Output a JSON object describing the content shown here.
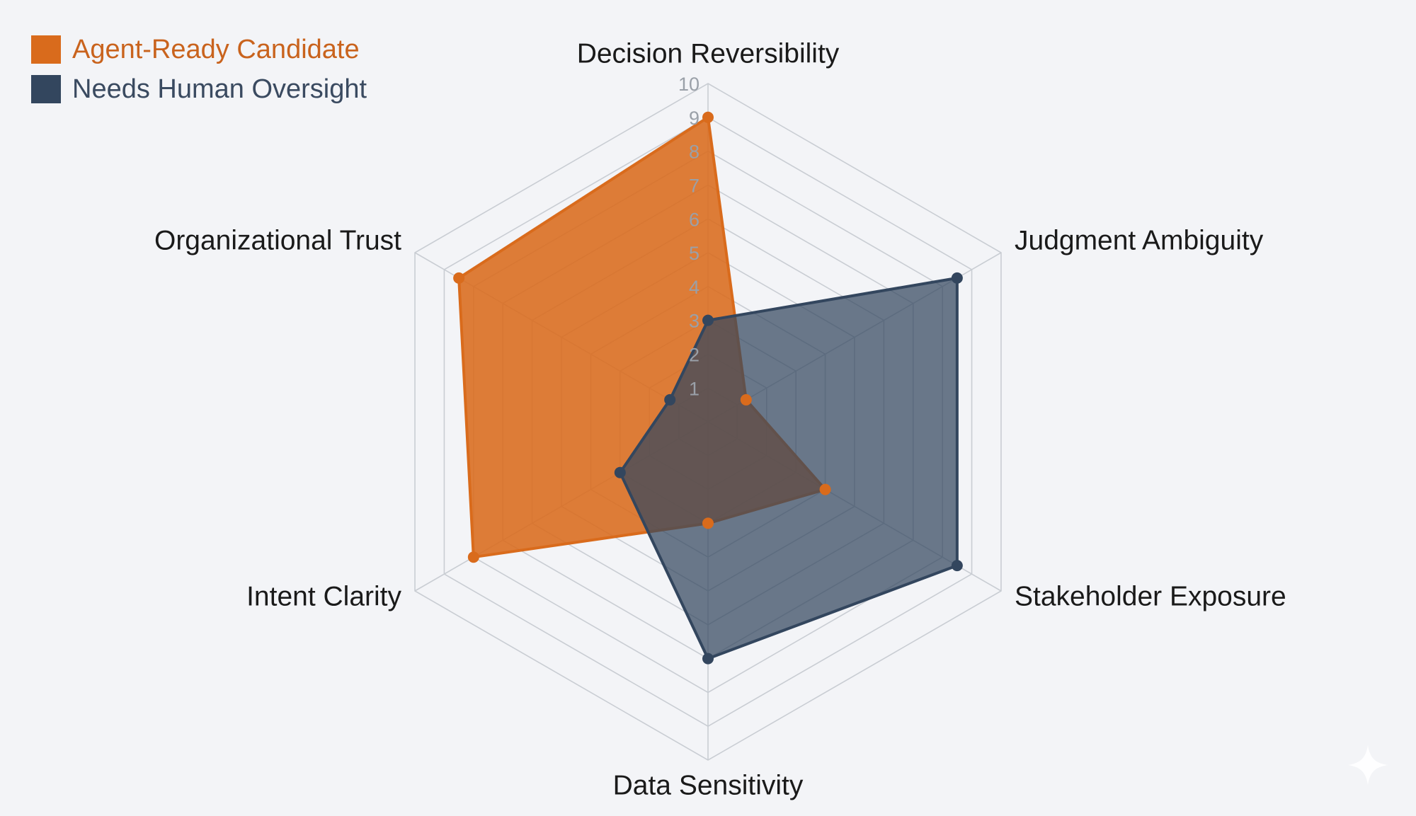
{
  "chart_data": {
    "type": "radar",
    "axes": [
      "Decision Reversibility",
      "Judgment Ambiguity",
      "Stakeholder Exposure",
      "Data Sensitivity",
      "Intent Clarity",
      "Organizational Trust"
    ],
    "rlim": [
      0,
      10
    ],
    "ticks": [
      "1",
      "2",
      "3",
      "4",
      "5",
      "6",
      "7",
      "8",
      "9",
      "10"
    ],
    "grid": true,
    "legend_position": "top-left",
    "series": [
      {
        "name": "Agent-Ready Candidate",
        "color": "#d96b1c",
        "values": [
          9,
          1.3,
          4,
          3,
          8,
          8.5
        ]
      },
      {
        "name": "Needs Human Oversight",
        "color": "#33465e",
        "values": [
          3,
          8.5,
          8.5,
          7,
          3,
          1.3
        ]
      }
    ]
  },
  "legend": {
    "items": [
      {
        "label": "Agent-Ready Candidate",
        "color": "#d96b1c",
        "text_color": "#c9631d"
      },
      {
        "label": "Needs Human Oversight",
        "color": "#33465e",
        "text_color": "#3a4a60"
      }
    ]
  },
  "decoration": {
    "sparkle_icon": "sparkle-icon"
  }
}
